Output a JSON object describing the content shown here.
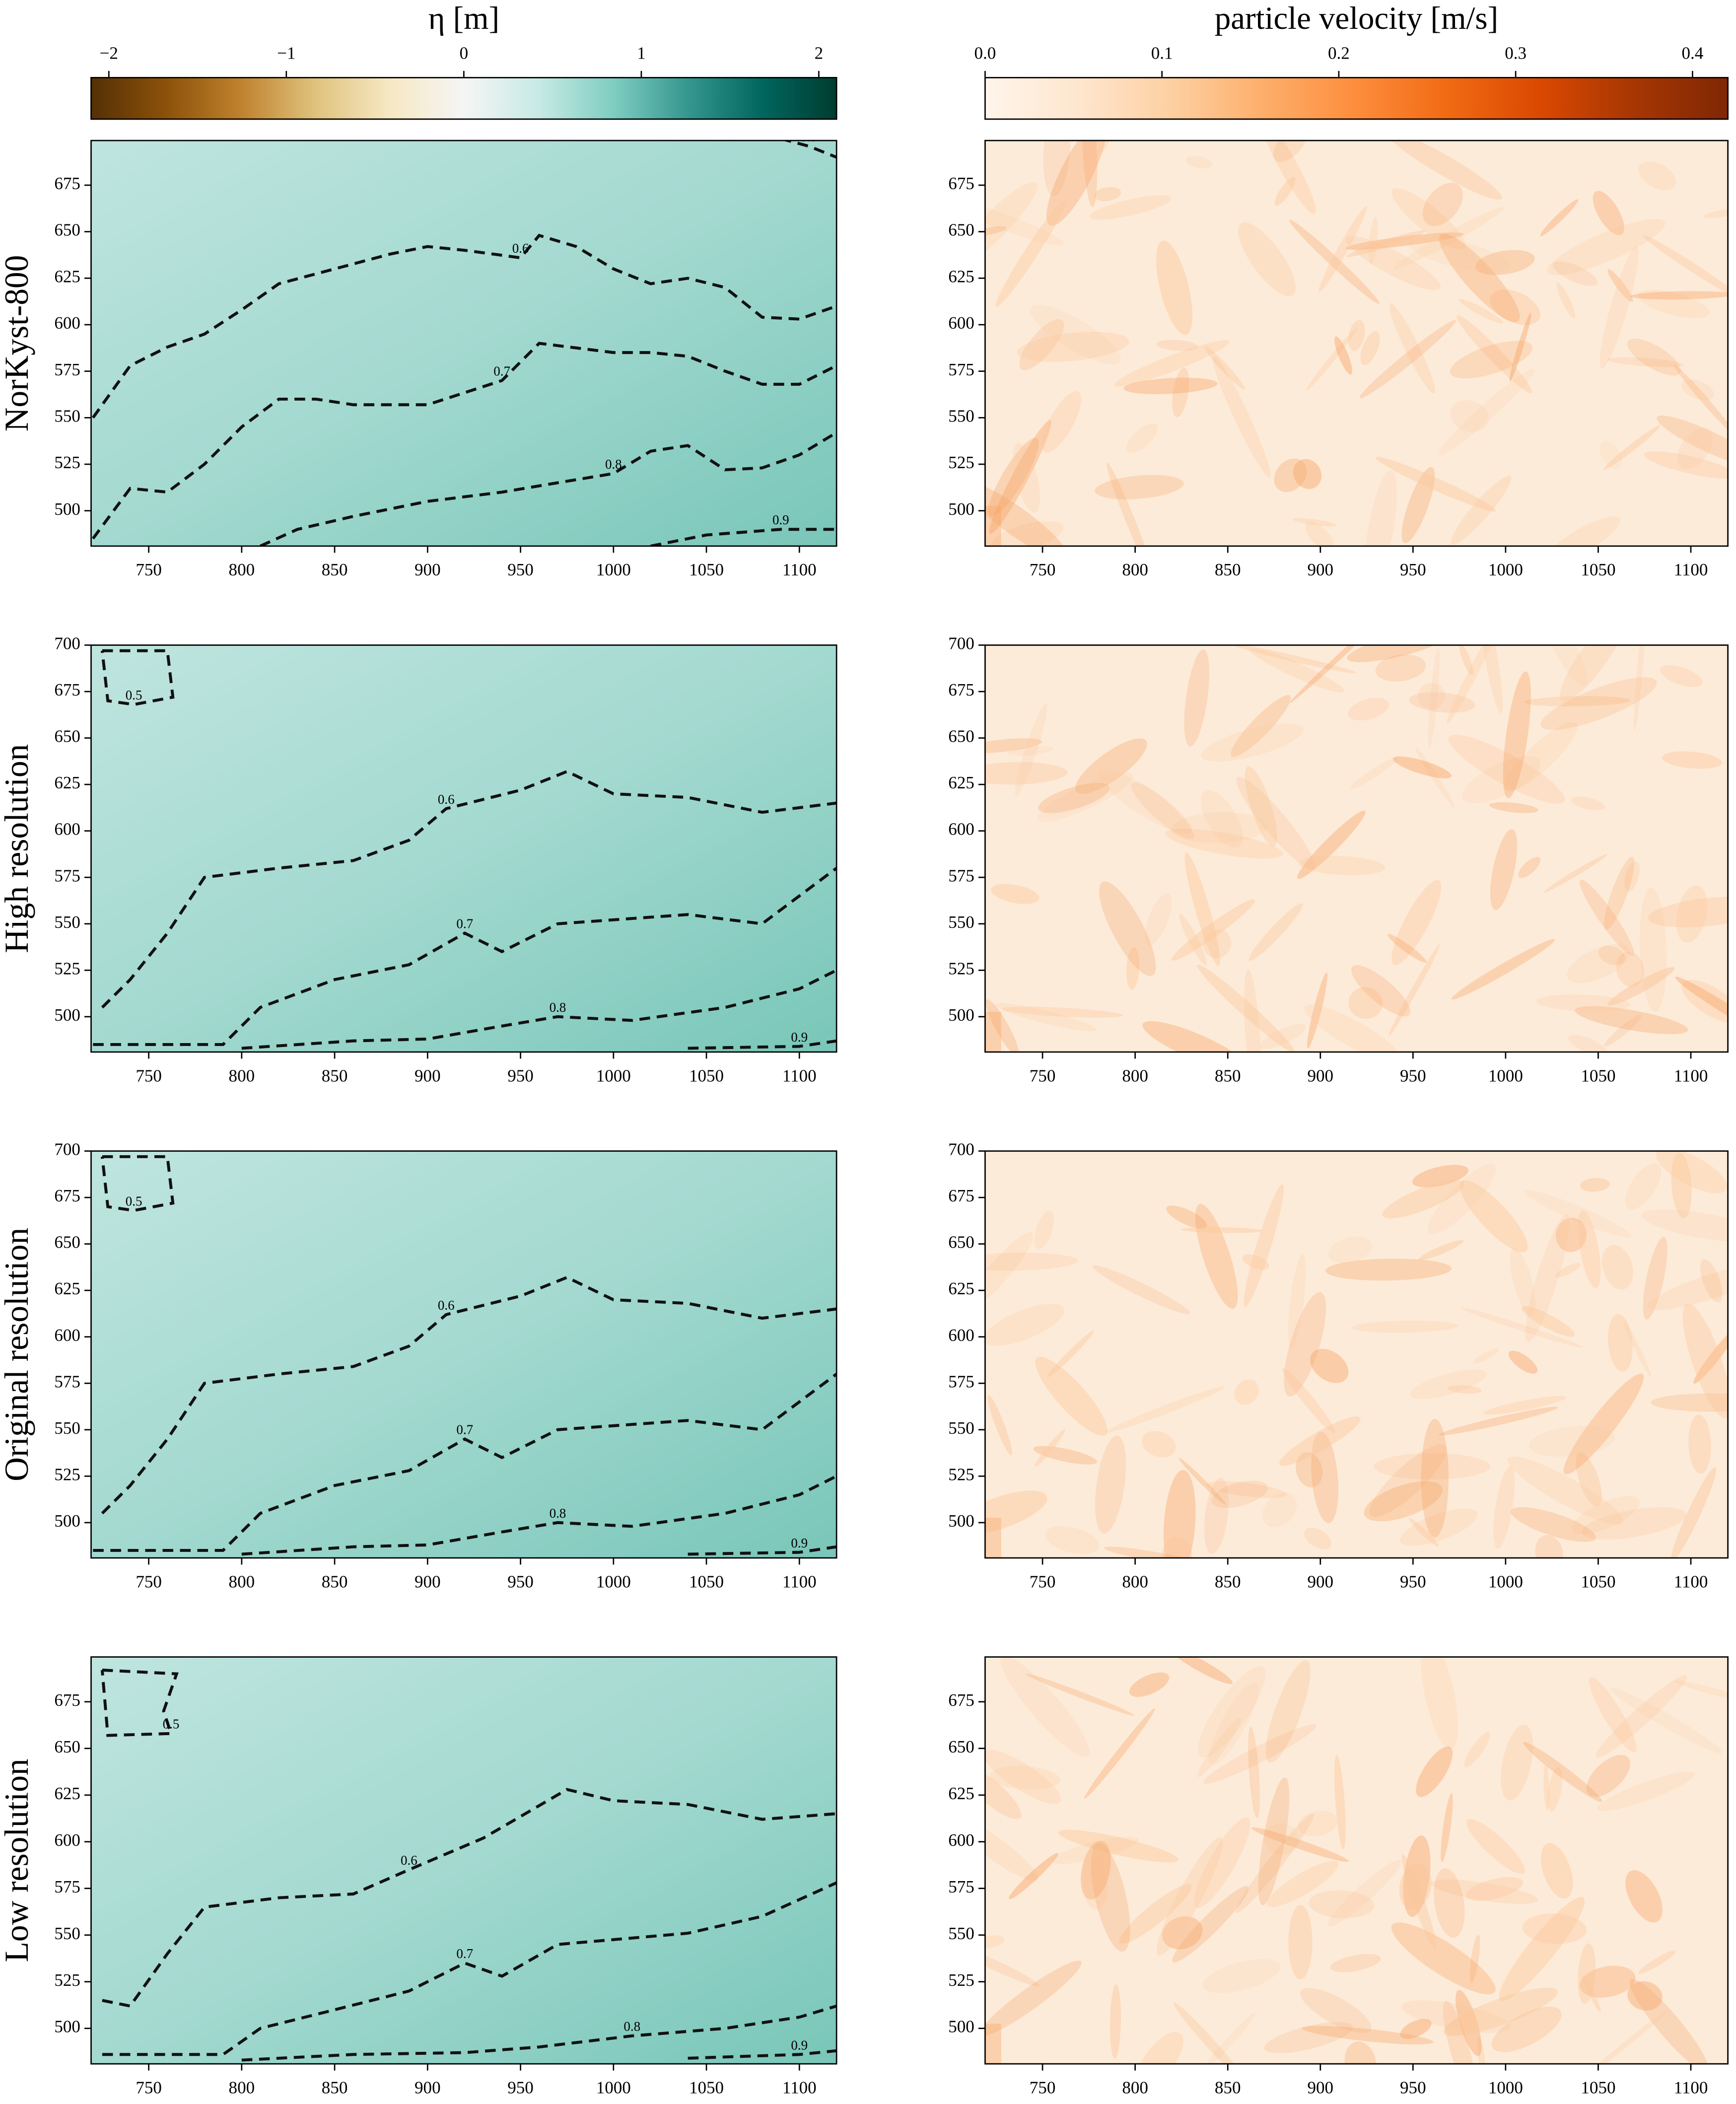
{
  "chart_data": [
    {
      "type": "colorbar",
      "label": "η [m]",
      "colors": [
        "#543005",
        "#8c510a",
        "#bf812d",
        "#dfc27d",
        "#f6e8c3",
        "#f5f5f5",
        "#c7eae5",
        "#80cdc1",
        "#35978f",
        "#01665e",
        "#003c30"
      ],
      "xlim": [
        -2.1,
        2.1
      ],
      "xticks": [
        {
          "value": -2,
          "label": "−2"
        },
        {
          "value": -1,
          "label": "−1"
        },
        0,
        1,
        2
      ]
    },
    {
      "type": "colorbar",
      "label": "particle velocity [m/s]",
      "colors": [
        "#fff5eb",
        "#fee6ce",
        "#fdd0a2",
        "#fdae6b",
        "#fd8d3c",
        "#f16913",
        "#d94801",
        "#a63603",
        "#7f2704"
      ],
      "xlim": [
        0,
        0.42
      ],
      "xticks": [
        {
          "value": 0,
          "label": "0.0"
        },
        0.1,
        0.2,
        0.3,
        0.4
      ]
    },
    {
      "type": "heatmap",
      "ylabel": "NorKyst-800",
      "xlim": [
        719,
        1120
      ],
      "ylim": [
        481,
        699
      ],
      "xticks": [
        750,
        800,
        850,
        900,
        950,
        1000,
        1050,
        1100
      ],
      "yticks": [
        500,
        525,
        550,
        575,
        600,
        625,
        650,
        675
      ],
      "contour_levels": [
        0.5,
        0.6,
        0.7,
        0.8,
        0.9
      ]
    },
    {
      "type": "heatmap",
      "xlim": [
        719,
        1120
      ],
      "ylim": [
        481,
        699
      ],
      "xticks": [
        750,
        800,
        850,
        900,
        950,
        1000,
        1050,
        1100
      ],
      "yticks": [
        500,
        525,
        550,
        575,
        600,
        625,
        650,
        675
      ]
    },
    {
      "type": "heatmap",
      "ylabel": "High resolution",
      "xlim": [
        719,
        1120
      ],
      "ylim": [
        481,
        700
      ],
      "xticks": [
        750,
        800,
        850,
        900,
        950,
        1000,
        1050,
        1100
      ],
      "yticks": [
        500,
        525,
        550,
        575,
        600,
        625,
        650,
        675,
        700
      ],
      "contour_levels": [
        0.5,
        0.6,
        0.7,
        0.8,
        0.9
      ]
    },
    {
      "type": "heatmap",
      "xlim": [
        719,
        1120
      ],
      "ylim": [
        481,
        700
      ],
      "xticks": [
        750,
        800,
        850,
        900,
        950,
        1000,
        1050,
        1100
      ],
      "yticks": [
        500,
        525,
        550,
        575,
        600,
        625,
        650,
        675,
        700
      ]
    },
    {
      "type": "heatmap",
      "ylabel": "Original resolution",
      "xlim": [
        719,
        1120
      ],
      "ylim": [
        481,
        700
      ],
      "xticks": [
        750,
        800,
        850,
        900,
        950,
        1000,
        1050,
        1100
      ],
      "yticks": [
        500,
        525,
        550,
        575,
        600,
        625,
        650,
        675,
        700
      ],
      "contour_levels": [
        0.5,
        0.6,
        0.7,
        0.8,
        0.9
      ]
    },
    {
      "type": "heatmap",
      "xlim": [
        719,
        1120
      ],
      "ylim": [
        481,
        700
      ],
      "xticks": [
        750,
        800,
        850,
        900,
        950,
        1000,
        1050,
        1100
      ],
      "yticks": [
        500,
        525,
        550,
        575,
        600,
        625,
        650,
        675,
        700
      ]
    },
    {
      "type": "heatmap",
      "ylabel": "Low resolution",
      "xlim": [
        719,
        1120
      ],
      "ylim": [
        481,
        699
      ],
      "xticks": [
        750,
        800,
        850,
        900,
        950,
        1000,
        1050,
        1100
      ],
      "yticks": [
        500,
        525,
        550,
        575,
        600,
        625,
        650,
        675
      ],
      "contour_levels": [
        0.5,
        0.6,
        0.7,
        0.8,
        0.9
      ]
    },
    {
      "type": "heatmap",
      "xlim": [
        719,
        1120
      ],
      "ylim": [
        481,
        699
      ],
      "xticks": [
        750,
        800,
        850,
        900,
        950,
        1000,
        1050,
        1100
      ],
      "yticks": [
        500,
        525,
        550,
        575,
        600,
        625,
        650,
        675
      ]
    }
  ]
}
